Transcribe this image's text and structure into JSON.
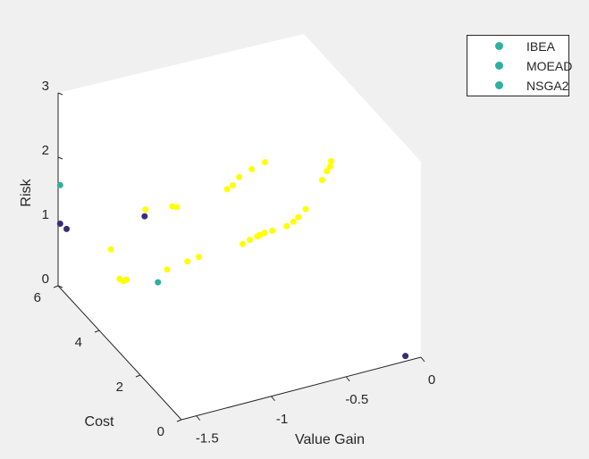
{
  "chart_data": {
    "type": "scatter",
    "projection": "3d",
    "axes": {
      "x": {
        "label": "Value Gain",
        "range": [
          -1.6,
          0
        ],
        "ticks": [
          -1.5,
          -1,
          -0.5,
          0
        ],
        "tick_labels": [
          "-1.5",
          "-1",
          "-0.5",
          "0"
        ]
      },
      "y": {
        "label": "Cost",
        "range": [
          0,
          6
        ],
        "ticks": [
          0,
          2,
          4,
          6
        ],
        "tick_labels": [
          "0",
          "2",
          "4",
          "6"
        ]
      },
      "z": {
        "label": "Risk",
        "range": [
          0,
          3
        ],
        "ticks": [
          0,
          1,
          2,
          3
        ],
        "tick_labels": [
          "0",
          "1",
          "2",
          "3"
        ]
      }
    },
    "grid": false,
    "legend_position": "outside-top-right",
    "legend": [
      "IBEA",
      "MOEAD",
      "NSGA2"
    ],
    "series": [
      {
        "name": "IBEA",
        "color": "#2db19e",
        "points": [
          [
            -1.6,
            5.9,
            1.6
          ],
          [
            -1.08,
            4.93,
            0.11
          ]
        ]
      },
      {
        "name": "MOEAD",
        "color": "#2db19e",
        "points": []
      },
      {
        "name": "NSGA2",
        "color": "#2db19e",
        "points": []
      },
      {
        "name": "",
        "color": "#3a2c78",
        "points": [
          [
            -1.6,
            5.9,
            1.0
          ],
          [
            -1.56,
            5.88,
            0.9
          ],
          [
            -1.08,
            5.58,
            0.91
          ],
          [
            -0.1,
            0.03,
            0.07
          ]
        ]
      },
      {
        "name": "",
        "color": "#ffff00",
        "points": [
          [
            -1.34,
            5.33,
            0.64
          ],
          [
            -1.28,
            5.34,
            0.14
          ],
          [
            -1.26,
            5.33,
            0.1
          ],
          [
            -1.25,
            5.35,
            0.09
          ],
          [
            -1.23,
            5.37,
            0.09
          ],
          [
            -1.07,
            5.61,
            1.0
          ],
          [
            -0.91,
            5.47,
            1.0
          ],
          [
            -0.88,
            5.47,
            0.97
          ],
          [
            -0.99,
            5.14,
            0.18
          ],
          [
            -0.85,
            5.17,
            0.21
          ],
          [
            -0.77,
            5.2,
            0.22
          ],
          [
            -0.6,
            5.06,
            1.22
          ],
          [
            -0.56,
            5.08,
            1.25
          ],
          [
            -0.5,
            5.2,
            1.3
          ],
          [
            -0.42,
            5.18,
            1.38
          ],
          [
            -0.33,
            5.19,
            1.43
          ],
          [
            -0.53,
            4.82,
            0.41
          ],
          [
            -0.48,
            4.83,
            0.44
          ],
          [
            -0.43,
            4.84,
            0.46
          ],
          [
            -0.41,
            4.84,
            0.47
          ],
          [
            -0.38,
            4.85,
            0.48
          ],
          [
            -0.33,
            4.83,
            0.49
          ],
          [
            -0.25,
            4.72,
            0.55
          ],
          [
            -0.2,
            4.75,
            0.58
          ],
          [
            -0.16,
            4.8,
            0.61
          ],
          [
            -0.1,
            4.88,
            0.67
          ],
          [
            -0.1,
            4.08,
            1.4
          ],
          [
            -0.05,
            4.22,
            1.46
          ],
          [
            -0.02,
            4.28,
            1.49
          ],
          [
            0,
            4.37,
            1.53
          ]
        ]
      }
    ]
  }
}
